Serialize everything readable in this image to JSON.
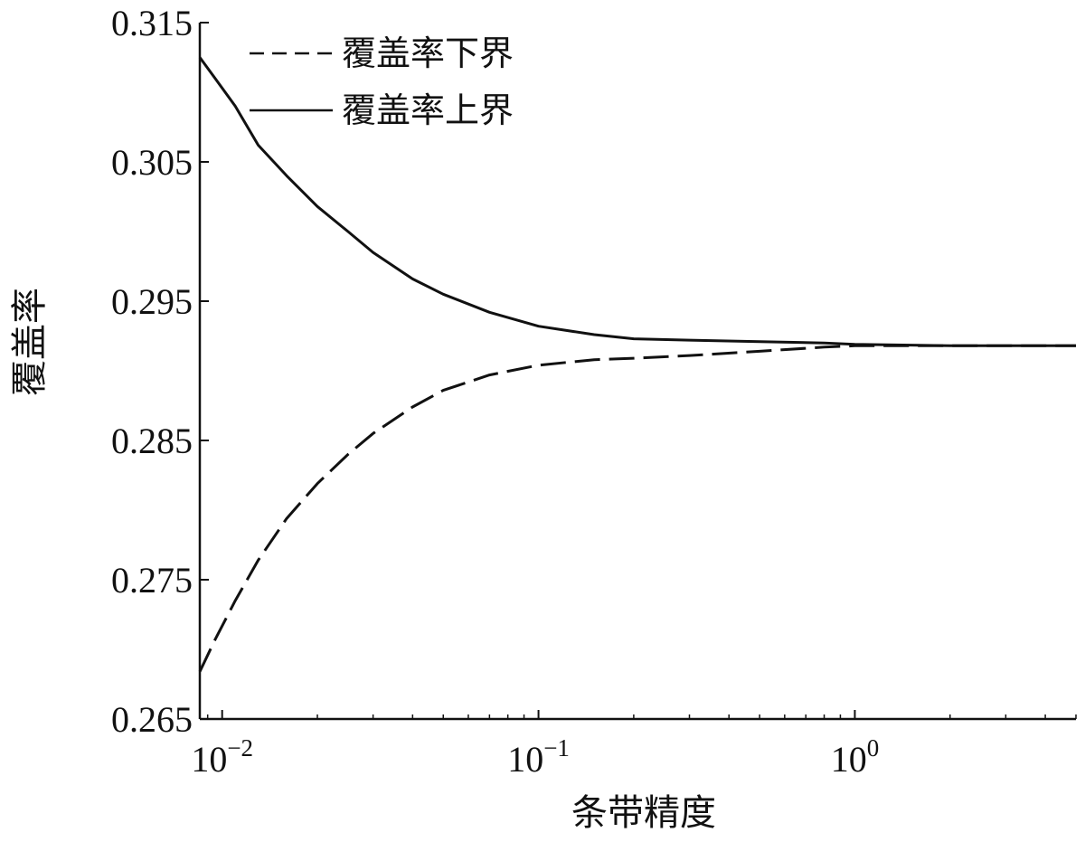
{
  "chart_data": {
    "type": "line",
    "x_scale": "log",
    "xlabel": "条带精度",
    "ylabel": "覆盖率",
    "xlim": [
      0.0085,
      5
    ],
    "ylim": [
      0.265,
      0.315
    ],
    "x_ticks": [
      {
        "value": 0.01,
        "base": "10",
        "exp": "−2"
      },
      {
        "value": 0.1,
        "base": "10",
        "exp": "−1"
      },
      {
        "value": 1,
        "base": "10",
        "exp": "0"
      }
    ],
    "y_ticks": [
      {
        "value": 0.265,
        "label": "0.265"
      },
      {
        "value": 0.275,
        "label": "0.275"
      },
      {
        "value": 0.285,
        "label": "0.285"
      },
      {
        "value": 0.295,
        "label": "0.295"
      },
      {
        "value": 0.305,
        "label": "0.305"
      },
      {
        "value": 0.315,
        "label": "0.315"
      }
    ],
    "grid": false,
    "legend_position": "top-left",
    "series": [
      {
        "name": "覆盖率下界",
        "style": "dashed",
        "color": "#111111",
        "x": [
          0.0085,
          0.0095,
          0.011,
          0.013,
          0.016,
          0.02,
          0.025,
          0.03,
          0.04,
          0.05,
          0.07,
          0.1,
          0.15,
          0.2,
          0.3,
          0.5,
          0.8,
          1.0,
          2.0,
          5.0
        ],
        "y": [
          0.2684,
          0.2707,
          0.2735,
          0.2764,
          0.2794,
          0.2819,
          0.284,
          0.2855,
          0.2874,
          0.2886,
          0.2897,
          0.2904,
          0.2908,
          0.2909,
          0.2911,
          0.2914,
          0.2917,
          0.2918,
          0.2918,
          0.2918
        ]
      },
      {
        "name": "覆盖率上界",
        "style": "solid",
        "color": "#111111",
        "x": [
          0.0085,
          0.0095,
          0.011,
          0.013,
          0.016,
          0.02,
          0.025,
          0.03,
          0.04,
          0.05,
          0.07,
          0.1,
          0.15,
          0.2,
          0.3,
          0.5,
          0.8,
          1.0,
          2.0,
          5.0
        ],
        "y": [
          0.3125,
          0.311,
          0.309,
          0.3062,
          0.304,
          0.3018,
          0.3,
          0.2985,
          0.2966,
          0.2955,
          0.2942,
          0.2932,
          0.2926,
          0.2923,
          0.2922,
          0.2921,
          0.292,
          0.2919,
          0.2918,
          0.2918
        ]
      }
    ]
  }
}
